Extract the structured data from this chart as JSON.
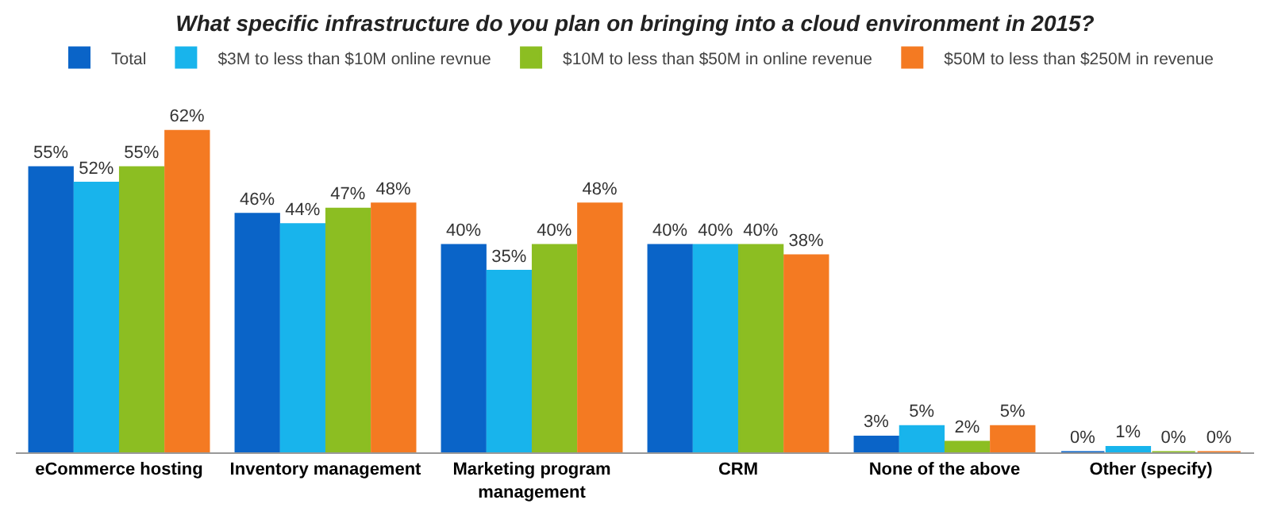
{
  "chart_data": {
    "type": "bar",
    "title": "What specific infrastructure do you plan on bringing into a cloud environment in 2015?",
    "categories": [
      "eCommerce hosting",
      "Inventory management",
      "Marketing program management",
      "CRM",
      "None of the above",
      "Other (specify)"
    ],
    "legend": "top",
    "series": [
      {
        "name": "Total",
        "color": "#0a64c8",
        "values": [
          55,
          46,
          40,
          40,
          3,
          0
        ],
        "value_labels": [
          "55%",
          "46%",
          "40%",
          "40%",
          "3%",
          "0%"
        ]
      },
      {
        "name": "$3M to less than $10M online revnue",
        "color": "#18b4ec",
        "values": [
          52,
          44,
          35,
          40,
          5,
          1
        ],
        "value_labels": [
          "52%",
          "44%",
          "35%",
          "40%",
          "5%",
          "1%"
        ]
      },
      {
        "name": "$10M to less than $50M in online revenue",
        "color": "#8cbe22",
        "values": [
          55,
          47,
          40,
          40,
          2,
          0
        ],
        "value_labels": [
          "55%",
          "47%",
          "40%",
          "40%",
          "2%",
          "0%"
        ]
      },
      {
        "name": "$50M to less than $250M in revenue",
        "color": "#f47a22",
        "values": [
          62,
          48,
          48,
          38,
          5,
          0
        ],
        "value_labels": [
          "62%",
          "48%",
          "48%",
          "38%",
          "5%",
          "0%"
        ]
      }
    ]
  }
}
